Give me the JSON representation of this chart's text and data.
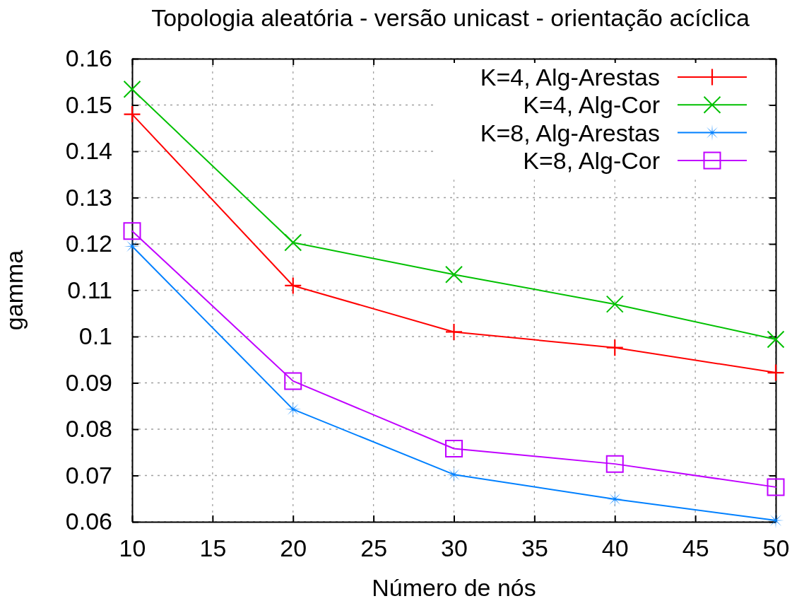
{
  "chart_data": {
    "type": "line",
    "title": "Topologia aleatória - versão unicast - orientação acíclica",
    "xlabel": "Número de nós",
    "ylabel": "gamma",
    "x": [
      10,
      20,
      30,
      40,
      50
    ],
    "series": [
      {
        "name": "K=4, Alg-Arestas",
        "color": "#ff0000",
        "marker": "cross",
        "values": [
          0.148,
          0.111,
          0.101,
          0.0976,
          0.0922
        ]
      },
      {
        "name": "K=4, Alg-Cor",
        "color": "#00c000",
        "marker": "cross",
        "values": [
          0.1534,
          0.1203,
          0.1134,
          0.107,
          0.0994
        ]
      },
      {
        "name": "K=8, Alg-Arestas",
        "color": "#0080ff",
        "marker": "star",
        "values": [
          0.1195,
          0.0843,
          0.0702,
          0.0649,
          0.0603
        ]
      },
      {
        "name": "K=8, Alg-Cor",
        "color": "#c000ff",
        "marker": "square",
        "values": [
          0.1228,
          0.0904,
          0.0758,
          0.0725,
          0.0675
        ]
      }
    ],
    "xlim": [
      10,
      50
    ],
    "xticks": [
      10,
      15,
      20,
      25,
      30,
      35,
      40,
      45,
      50
    ],
    "ylim": [
      0.06,
      0.16
    ],
    "yticks": [
      0.06,
      0.07,
      0.08,
      0.09,
      0.1,
      0.11,
      0.12,
      0.13,
      0.14,
      0.15,
      0.16
    ],
    "grid": true,
    "legend": "top right",
    "line_style": "solid"
  }
}
